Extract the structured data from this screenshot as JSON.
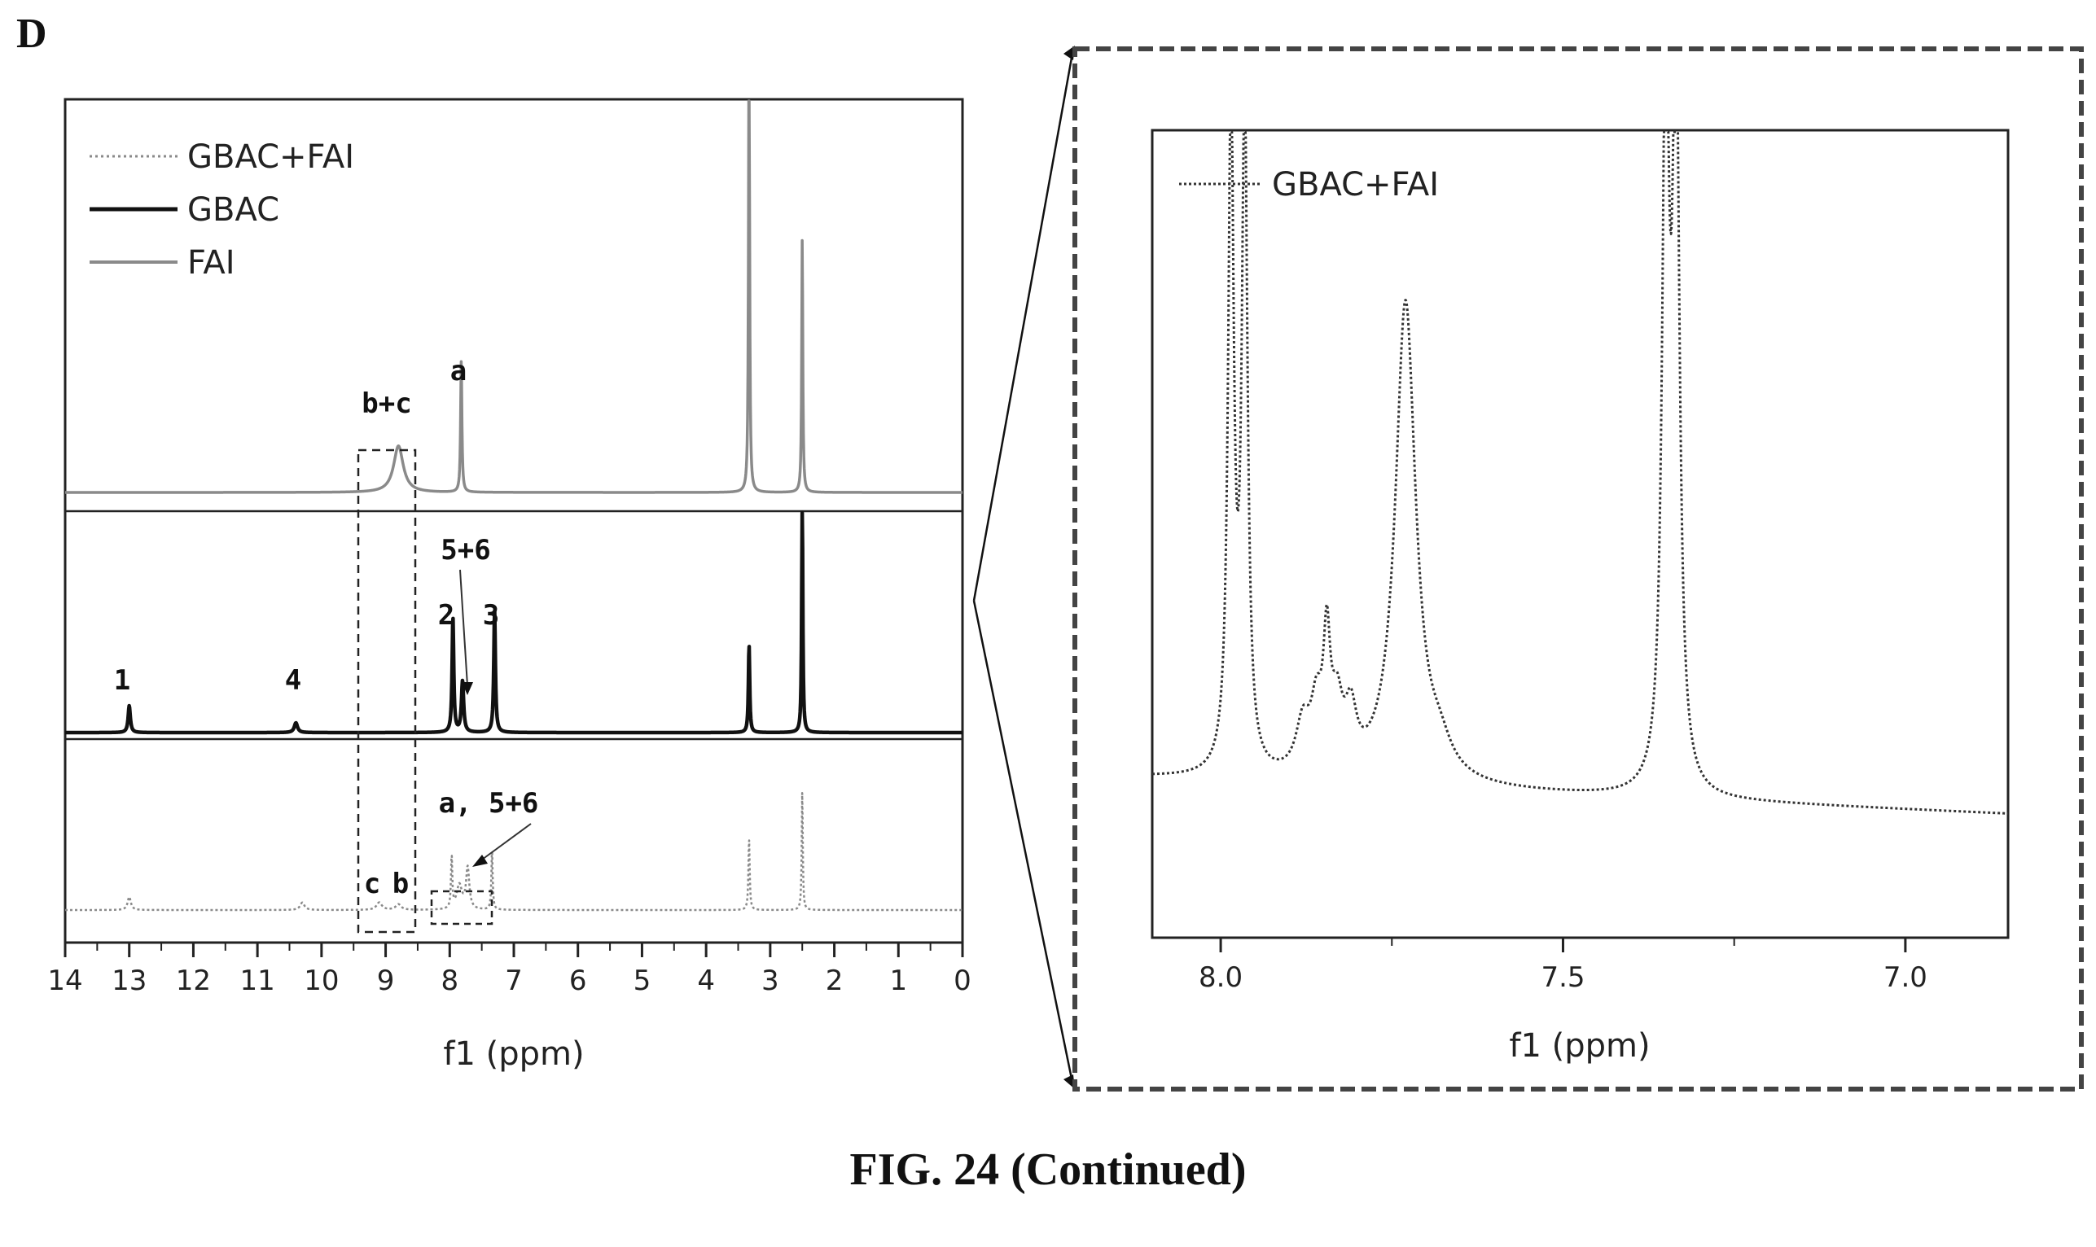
{
  "figure": {
    "panel_letter": "D",
    "caption": "FIG. 24 (Continued)"
  },
  "chart_data": [
    {
      "type": "line",
      "title": "",
      "xlabel": "f1 (ppm)",
      "ylabel": "",
      "x_reversed": true,
      "xlim": [
        14,
        0
      ],
      "x_ticks": [
        "14",
        "13",
        "12",
        "11",
        "10",
        "9",
        "8",
        "7",
        "6",
        "5",
        "4",
        "3",
        "2",
        "1",
        "0"
      ],
      "legend": {
        "placement": "top-left",
        "entries": [
          {
            "name": "GBAC+FAI",
            "style": "dotted",
            "color": "#8a8a8a"
          },
          {
            "name": "GBAC",
            "style": "solid",
            "color": "#111111"
          },
          {
            "name": "FAI",
            "style": "solid",
            "color": "#8a8a8a"
          }
        ]
      },
      "series": [
        {
          "name": "FAI",
          "color": "#8a8a8a",
          "style": "solid",
          "peaks": [
            {
              "ppm": 8.8,
              "height": 0.22,
              "width": 0.09
            },
            {
              "ppm": 7.82,
              "height": 0.62,
              "width": 0.012
            },
            {
              "ppm": 3.33,
              "height": 2.3,
              "width": 0.01
            },
            {
              "ppm": 2.5,
              "height": 1.2,
              "width": 0.01
            }
          ]
        },
        {
          "name": "GBAC",
          "color": "#111111",
          "style": "solid",
          "peaks": [
            {
              "ppm": 13.0,
              "height": 0.11,
              "width": 0.02
            },
            {
              "ppm": 10.4,
              "height": 0.04,
              "width": 0.03
            },
            {
              "ppm": 7.95,
              "height": 0.47,
              "width": 0.015
            },
            {
              "ppm": 7.8,
              "height": 0.21,
              "width": 0.02
            },
            {
              "ppm": 7.3,
              "height": 0.5,
              "width": 0.015
            },
            {
              "ppm": 3.33,
              "height": 0.36,
              "width": 0.012
            },
            {
              "ppm": 2.5,
              "height": 0.98,
              "width": 0.01
            }
          ]
        },
        {
          "name": "GBAC+FAI",
          "color": "#8a8a8a",
          "style": "dotted",
          "peaks": [
            {
              "ppm": 13.0,
              "height": 0.07,
              "width": 0.03
            },
            {
              "ppm": 10.3,
              "height": 0.04,
              "width": 0.04
            },
            {
              "ppm": 9.1,
              "height": 0.04,
              "width": 0.05
            },
            {
              "ppm": 8.8,
              "height": 0.03,
              "width": 0.05
            },
            {
              "ppm": 7.97,
              "height": 0.28,
              "width": 0.012
            },
            {
              "ppm": 7.85,
              "height": 0.13,
              "width": 0.05
            },
            {
              "ppm": 7.72,
              "height": 0.22,
              "width": 0.03
            },
            {
              "ppm": 7.34,
              "height": 0.32,
              "width": 0.012
            },
            {
              "ppm": 3.33,
              "height": 0.38,
              "width": 0.012
            },
            {
              "ppm": 2.5,
              "height": 0.63,
              "width": 0.01
            }
          ]
        }
      ],
      "annotations": [
        {
          "text": "a",
          "ppm": 7.82,
          "trace": "FAI"
        },
        {
          "text": "b+c",
          "ppm": 9.25,
          "trace": "FAI"
        },
        {
          "text": "1",
          "ppm": 13.0,
          "trace": "GBAC"
        },
        {
          "text": "4",
          "ppm": 10.0,
          "trace": "GBAC"
        },
        {
          "text": "2",
          "ppm": 8.0,
          "trace": "GBAC"
        },
        {
          "text": "3",
          "ppm": 7.3,
          "trace": "GBAC"
        },
        {
          "text": "5+6",
          "ppm": 7.6,
          "trace": "GBAC"
        },
        {
          "text": "a, 5+6",
          "ppm": 7.2,
          "trace": "GBAC+FAI"
        },
        {
          "text": "c",
          "ppm": 9.15,
          "trace": "GBAC+FAI"
        },
        {
          "text": "b",
          "ppm": 8.72,
          "trace": "GBAC+FAI"
        }
      ]
    },
    {
      "type": "line",
      "title": "",
      "xlabel": "f1 (ppm)",
      "ylabel": "",
      "x_reversed": true,
      "xlim": [
        8.1,
        6.85
      ],
      "x_ticks": [
        "8.0",
        "7.5",
        "7.0"
      ],
      "legend": {
        "placement": "top-left",
        "entries": [
          {
            "name": "GBAC+FAI",
            "style": "dotted",
            "color": "#333333"
          }
        ]
      },
      "series": [
        {
          "name": "GBAC+FAI",
          "color": "#333333",
          "style": "dotted",
          "baseline_left": 0.06,
          "baseline_right": 0.0,
          "peaks": [
            {
              "ppm": 7.985,
              "height": 1.1,
              "width": 0.005
            },
            {
              "ppm": 7.965,
              "height": 1.1,
              "width": 0.005
            },
            {
              "ppm": 7.88,
              "height": 0.08,
              "width": 0.012
            },
            {
              "ppm": 7.86,
              "height": 0.1,
              "width": 0.01
            },
            {
              "ppm": 7.845,
              "height": 0.2,
              "width": 0.006
            },
            {
              "ppm": 7.83,
              "height": 0.1,
              "width": 0.01
            },
            {
              "ppm": 7.81,
              "height": 0.09,
              "width": 0.01
            },
            {
              "ppm": 7.73,
              "height": 0.8,
              "width": 0.018
            },
            {
              "ppm": 7.68,
              "height": 0.04,
              "width": 0.02
            },
            {
              "ppm": 7.35,
              "height": 1.2,
              "width": 0.006
            },
            {
              "ppm": 7.335,
              "height": 1.2,
              "width": 0.006
            }
          ]
        }
      ]
    }
  ]
}
